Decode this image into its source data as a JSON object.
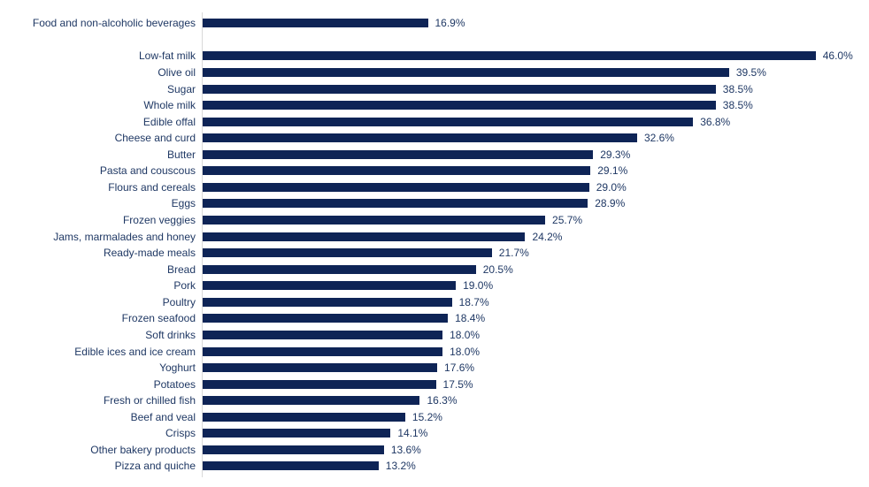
{
  "chart_data": {
    "type": "bar",
    "orientation": "horizontal",
    "title": "",
    "xlabel": "",
    "ylabel": "",
    "xlim": [
      0,
      50
    ],
    "grid": false,
    "legend": false,
    "bar_color": "#0e2456",
    "axis_line_color": "#d9d9d9",
    "text_color": "#1f3864",
    "gap_after_index": 0,
    "categories": [
      "Food and non-alcoholic beverages",
      "Low-fat milk",
      "Olive oil",
      "Sugar",
      "Whole milk",
      "Edible offal",
      "Cheese and curd",
      "Butter",
      "Pasta and couscous",
      "Flours and cereals",
      "Eggs",
      "Frozen veggies",
      "Jams, marmalades and honey",
      "Ready-made meals",
      "Bread",
      "Pork",
      "Poultry",
      "Frozen seafood",
      "Soft drinks",
      "Edible ices and ice cream",
      "Yoghurt",
      "Potatoes",
      "Fresh or chilled fish",
      "Beef and veal",
      "Crisps",
      "Other bakery products",
      "Pizza and quiche"
    ],
    "values": [
      16.9,
      46.0,
      39.5,
      38.5,
      38.5,
      36.8,
      32.6,
      29.3,
      29.1,
      29.0,
      28.9,
      25.7,
      24.2,
      21.7,
      20.5,
      19.0,
      18.7,
      18.4,
      18.0,
      18.0,
      17.6,
      17.5,
      16.3,
      15.2,
      14.1,
      13.6,
      13.2
    ],
    "value_labels": [
      "16.9%",
      "46.0%",
      "39.5%",
      "38.5%",
      "38.5%",
      "36.8%",
      "32.6%",
      "29.3%",
      "29.1%",
      "29.0%",
      "28.9%",
      "25.7%",
      "24.2%",
      "21.7%",
      "20.5%",
      "19.0%",
      "18.7%",
      "18.4%",
      "18.0%",
      "18.0%",
      "17.6%",
      "17.5%",
      "16.3%",
      "15.2%",
      "14.1%",
      "13.6%",
      "13.2%"
    ]
  }
}
